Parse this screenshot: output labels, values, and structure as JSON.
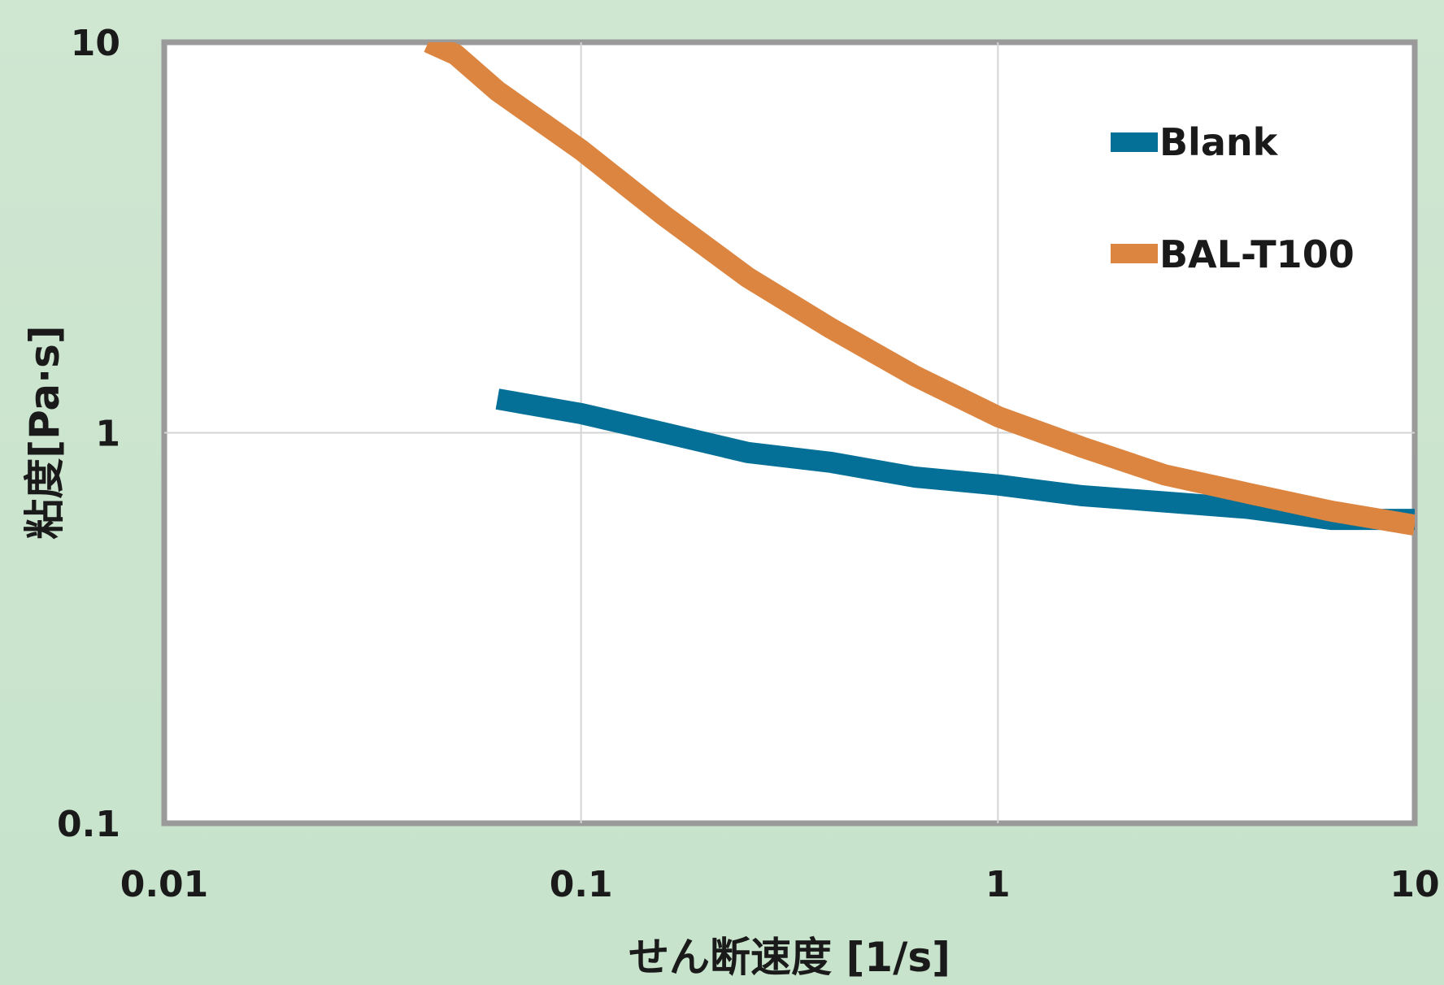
{
  "chart_data": {
    "type": "line",
    "xlabel": "せん断速度 [1/s]",
    "ylabel": "粘度[Pa·s]",
    "x_scale": "log",
    "y_scale": "log",
    "xlim": [
      0.01,
      10
    ],
    "ylim": [
      0.1,
      10
    ],
    "x_ticks": [
      {
        "value": 0.01,
        "label": "0.01"
      },
      {
        "value": 0.1,
        "label": "0.1"
      },
      {
        "value": 1,
        "label": "1"
      },
      {
        "value": 10,
        "label": "10"
      }
    ],
    "y_ticks": [
      {
        "value": 0.1,
        "label": "0.1"
      },
      {
        "value": 1,
        "label": "1"
      },
      {
        "value": 10,
        "label": "10"
      }
    ],
    "grid": true,
    "legend_position": "top-right",
    "series": [
      {
        "name": "Blank",
        "color": "#046f97",
        "x": [
          0.063,
          0.1,
          0.158,
          0.251,
          0.398,
          0.631,
          1.0,
          1.585,
          2.512,
          3.981,
          6.31,
          10.0
        ],
        "y": [
          1.22,
          1.12,
          1.0,
          0.89,
          0.84,
          0.77,
          0.735,
          0.69,
          0.665,
          0.64,
          0.6,
          0.6
        ]
      },
      {
        "name": "BAL-T100",
        "color": "#dc8540",
        "x": [
          0.043,
          0.05,
          0.063,
          0.1,
          0.158,
          0.251,
          0.398,
          0.631,
          1.0,
          1.585,
          2.512,
          3.981,
          6.31,
          10.0
        ],
        "y": [
          10.0,
          9.3,
          7.5,
          5.3,
          3.6,
          2.5,
          1.85,
          1.4,
          1.1,
          0.92,
          0.78,
          0.7,
          0.63,
          0.58
        ]
      }
    ]
  }
}
